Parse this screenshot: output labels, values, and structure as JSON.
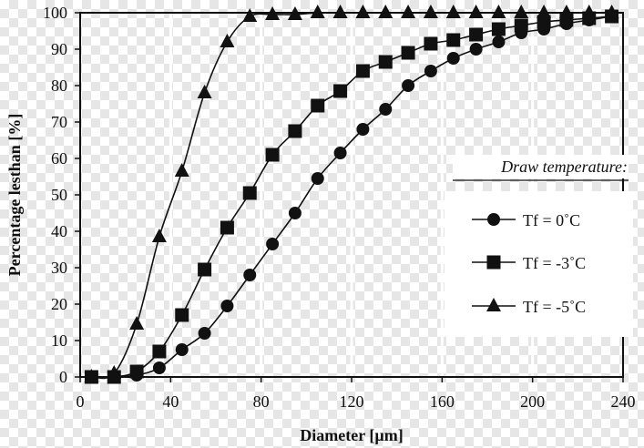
{
  "chart_data": {
    "type": "line",
    "xlabel": "Diameter [µm]",
    "ylabel": "Percentage lesthan [%]",
    "xlim": [
      0,
      240
    ],
    "ylim": [
      0,
      100
    ],
    "xticks": [
      0,
      40,
      80,
      120,
      160,
      200,
      240
    ],
    "yticks": [
      0,
      10,
      20,
      30,
      40,
      50,
      60,
      70,
      80,
      90,
      100
    ],
    "grid": "vertical",
    "legend": {
      "title": "Draw temperature:",
      "placement": "right",
      "entries": [
        "Tf = 0˚C",
        "Tf = -3˚C",
        "Tf = -5˚C"
      ]
    },
    "series": [
      {
        "name": "Tf = 0˚C",
        "marker": "circle",
        "x": [
          5,
          15,
          25,
          35,
          45,
          55,
          65,
          75,
          85,
          95,
          105,
          115,
          125,
          135,
          145,
          155,
          165,
          175,
          185,
          195,
          205,
          215,
          225,
          235
        ],
        "y": [
          0,
          0,
          0.5,
          2.5,
          7.5,
          12,
          19.5,
          28,
          36.5,
          45,
          54.5,
          61.5,
          68,
          73.5,
          80,
          84,
          87.5,
          90,
          92,
          94.5,
          95.5,
          97,
          98,
          99
        ]
      },
      {
        "name": "Tf = -3˚C",
        "marker": "square",
        "x": [
          5,
          15,
          25,
          35,
          45,
          55,
          65,
          75,
          85,
          95,
          105,
          115,
          125,
          135,
          145,
          155,
          165,
          175,
          185,
          195,
          205,
          215,
          225,
          235
        ],
        "y": [
          0,
          0,
          1.5,
          7,
          17,
          29.5,
          41,
          50.5,
          61,
          67.5,
          74.5,
          78.5,
          84,
          86.5,
          89,
          91.5,
          92.5,
          94,
          95.5,
          96.5,
          97.5,
          98,
          98.5,
          99
        ]
      },
      {
        "name": "Tf = -5˚C",
        "marker": "triangle",
        "x": [
          5,
          15,
          25,
          35,
          45,
          55,
          65,
          75,
          85,
          95,
          105,
          115,
          125,
          135,
          145,
          155,
          165,
          175,
          185,
          195,
          205,
          215,
          225,
          235
        ],
        "y": [
          0,
          1,
          14.5,
          38.5,
          56.5,
          78,
          92,
          99,
          99.5,
          99.5,
          100,
          100,
          100,
          100,
          100,
          100,
          100,
          100,
          100,
          100,
          100,
          100,
          100,
          100
        ]
      }
    ]
  }
}
